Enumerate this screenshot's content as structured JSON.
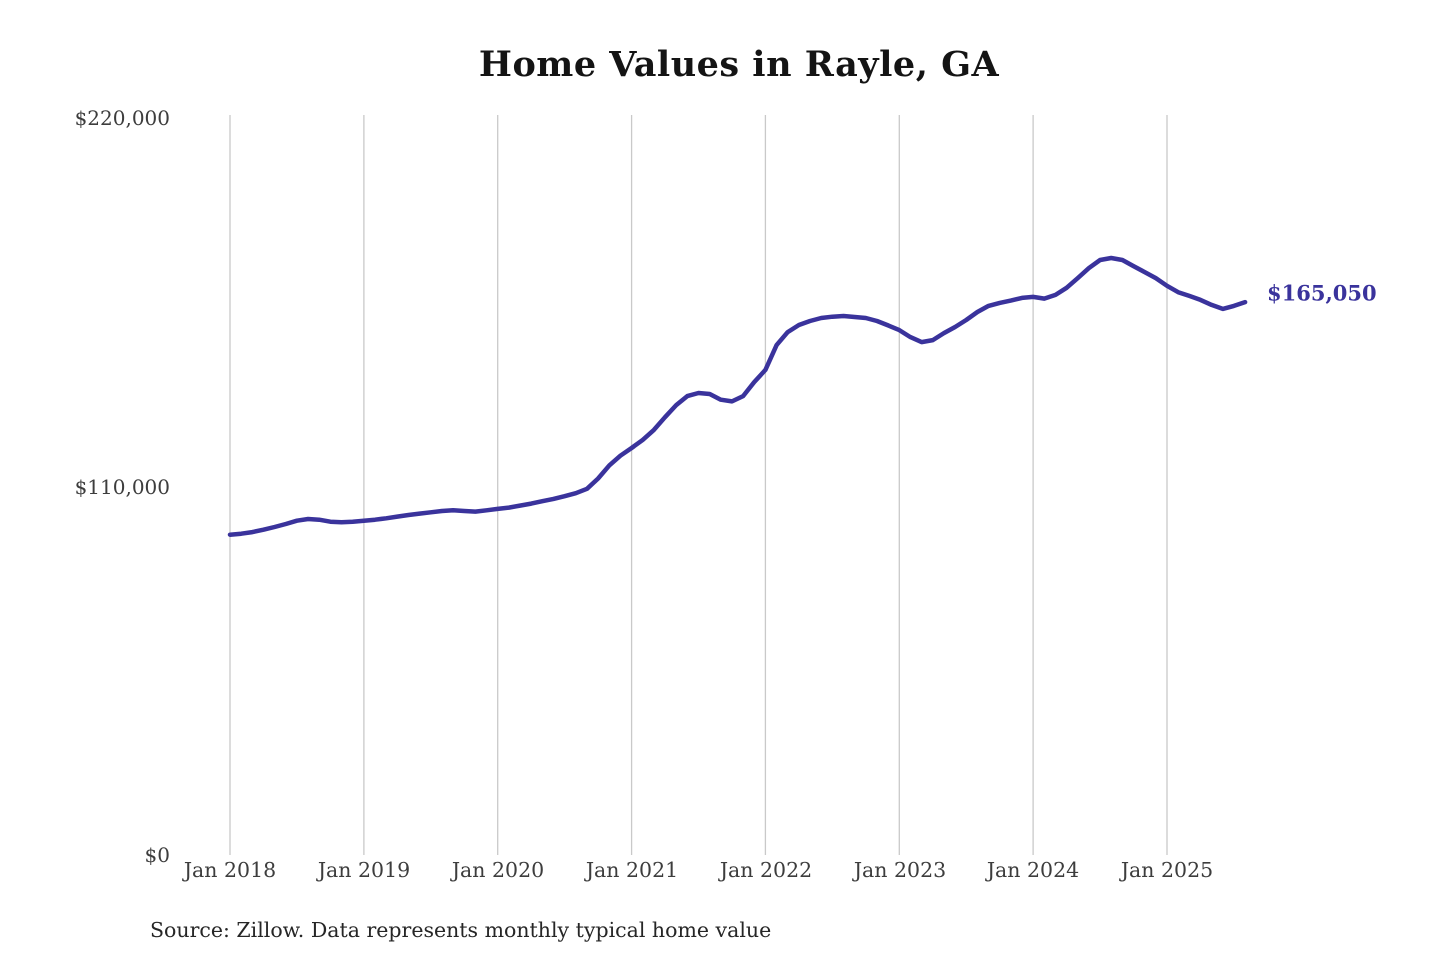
{
  "chart_data": {
    "type": "line",
    "title": "Home Values in Rayle, GA",
    "source": "Source: Zillow. Data represents monthly typical home value",
    "end_label": "$165,050",
    "end_value": 165050,
    "series_name": "Monthly typical home value",
    "line_color": "#3a339c",
    "grid_color": "#c9c9c9",
    "text_color": "#3d3d3d",
    "ylim": [
      0,
      220000
    ],
    "grid": "vertical-only",
    "legend": "none",
    "y_ticks": [
      {
        "value": 220000,
        "label": "$220,000"
      },
      {
        "value": 110000,
        "label": "$110,000"
      },
      {
        "value": 0,
        "label": "$0"
      }
    ],
    "x_ticks": [
      "Jan 2018",
      "Jan 2019",
      "Jan 2020",
      "Jan 2021",
      "Jan 2022",
      "Jan 2023",
      "Jan 2024",
      "Jan 2025"
    ],
    "frequency": "monthly",
    "x_start": "2018-01",
    "x_end": "2025-08",
    "values": [
      95600,
      95900,
      96400,
      97100,
      97900,
      98800,
      99800,
      100300,
      100100,
      99500,
      99300,
      99500,
      99800,
      100100,
      100500,
      101000,
      101500,
      101900,
      102300,
      102700,
      102900,
      102700,
      102500,
      102900,
      103300,
      103700,
      104300,
      104900,
      105600,
      106300,
      107100,
      108000,
      109300,
      112400,
      116300,
      119200,
      121500,
      123900,
      126900,
      130700,
      134300,
      137000,
      137900,
      137600,
      135900,
      135400,
      137000,
      141200,
      144800,
      152200,
      156100,
      158200,
      159400,
      160300,
      160700,
      160900,
      160600,
      160300,
      159400,
      158100,
      156700,
      154600,
      153100,
      153700,
      155800,
      157600,
      159700,
      162100,
      163900,
      164800,
      165500,
      166300,
      166600,
      166100,
      167200,
      169300,
      172200,
      175200,
      177600,
      178200,
      177600,
      175800,
      174000,
      172200,
      169900,
      168000,
      166900,
      165700,
      164200,
      163000,
      163900,
      165050
    ]
  }
}
